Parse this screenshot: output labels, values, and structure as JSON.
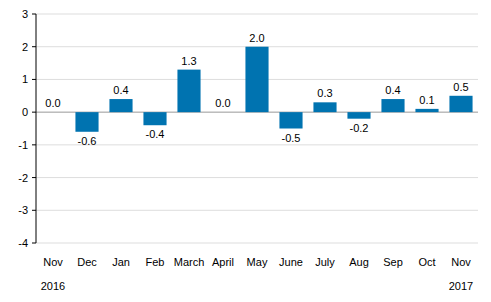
{
  "chart_data": {
    "type": "bar",
    "categories": [
      "Nov",
      "Dec",
      "Jan",
      "Feb",
      "March",
      "April",
      "May",
      "June",
      "July",
      "Aug",
      "Sep",
      "Oct",
      "Nov"
    ],
    "values": [
      0.0,
      -0.6,
      0.4,
      -0.4,
      1.3,
      0.0,
      2.0,
      -0.5,
      0.3,
      -0.2,
      0.4,
      0.1,
      0.5
    ],
    "value_labels": [
      "0.0",
      "-0.6",
      "0.4",
      "-0.4",
      "1.3",
      "0.0",
      "2.0",
      "-0.5",
      "0.3",
      "-0.2",
      "0.4",
      "0.1",
      "0.5"
    ],
    "annotations": [
      "2016",
      "2017"
    ],
    "color": "#0073b0",
    "ylim": [
      -4,
      3
    ],
    "yticks": [
      -4,
      -3,
      -2,
      -1,
      0,
      1,
      2,
      3
    ],
    "grid": true,
    "data_labels": true
  }
}
